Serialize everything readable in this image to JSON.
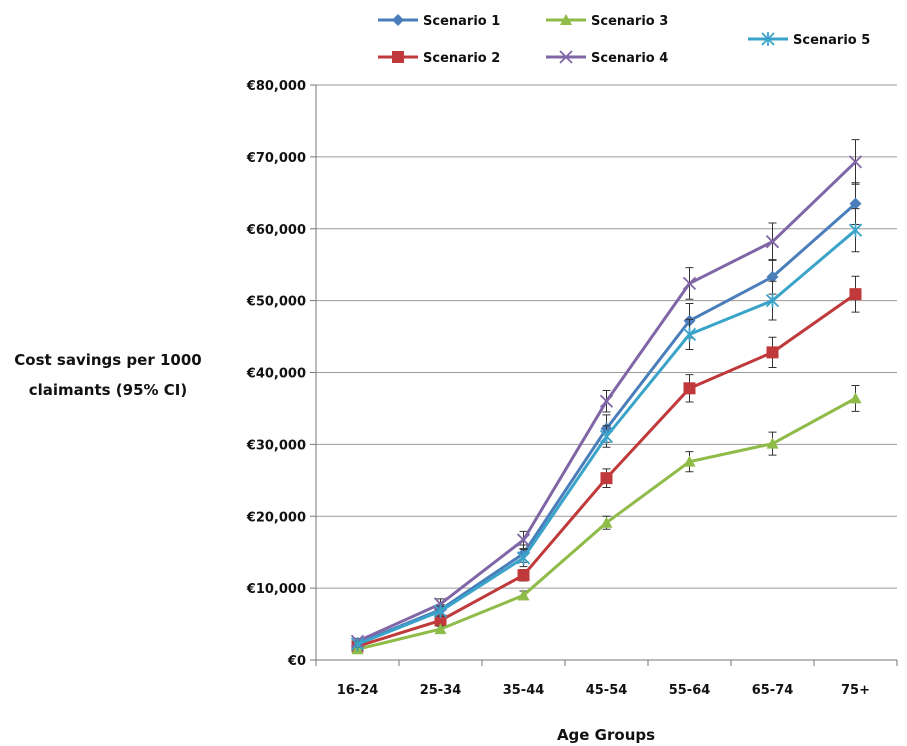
{
  "chart_data": {
    "type": "line",
    "xlabel": "Age Groups",
    "ylabel": [
      "Cost savings per 1000",
      "claimants (95% CI)"
    ],
    "categories": [
      "16-24",
      "25-34",
      "35-44",
      "45-54",
      "55-64",
      "65-74",
      "75+"
    ],
    "ylim": [
      0,
      80000
    ],
    "yticks": [
      0,
      10000,
      20000,
      30000,
      40000,
      50000,
      60000,
      70000,
      80000
    ],
    "ytick_labels": [
      "€0",
      "€10,000",
      "€20,000",
      "€30,000",
      "€40,000",
      "€50,000",
      "€60,000",
      "€70,000",
      "€80,000"
    ],
    "grid": true,
    "legend_position": "top",
    "series": [
      {
        "name": "Scenario 1",
        "color": "#4a7ebb",
        "marker": "diamond",
        "values": [
          2300,
          7000,
          14800,
          32200,
          47200,
          53300,
          63500
        ],
        "ci_low": [
          1900,
          6300,
          13600,
          30300,
          44800,
          50900,
          60600
        ],
        "ci_high": [
          2700,
          7700,
          16000,
          34100,
          49600,
          55700,
          66400
        ]
      },
      {
        "name": "Scenario 2",
        "color": "#c0393b",
        "marker": "square",
        "values": [
          1900,
          5500,
          11800,
          25300,
          37800,
          42800,
          50900
        ],
        "ci_low": [
          1500,
          5000,
          11000,
          24000,
          35900,
          40700,
          48400
        ],
        "ci_high": [
          2300,
          6000,
          12600,
          26600,
          39700,
          44900,
          53400
        ]
      },
      {
        "name": "Scenario 3",
        "color": "#8fbb48",
        "marker": "triangle",
        "values": [
          1500,
          4300,
          9000,
          19100,
          27600,
          30100,
          36400
        ],
        "ci_low": [
          1200,
          3900,
          8400,
          18200,
          26200,
          28500,
          34600
        ],
        "ci_high": [
          1800,
          4700,
          9600,
          20000,
          29000,
          31700,
          38200
        ]
      },
      {
        "name": "Scenario 4",
        "color": "#8066a6",
        "marker": "x",
        "values": [
          2600,
          7800,
          16700,
          36000,
          52400,
          58200,
          69300
        ],
        "ci_low": [
          2200,
          7100,
          15500,
          34500,
          50200,
          55600,
          66200
        ],
        "ci_high": [
          3000,
          8500,
          17900,
          37500,
          54600,
          60800,
          72400
        ]
      },
      {
        "name": "Scenario 5",
        "color": "#3aa3c9",
        "marker": "star",
        "values": [
          2200,
          6800,
          14200,
          31100,
          45300,
          50000,
          59800
        ],
        "ci_low": [
          1800,
          6100,
          13000,
          29600,
          43200,
          47300,
          56800
        ],
        "ci_high": [
          2600,
          7500,
          15400,
          32600,
          47400,
          52700,
          62800
        ]
      }
    ]
  }
}
